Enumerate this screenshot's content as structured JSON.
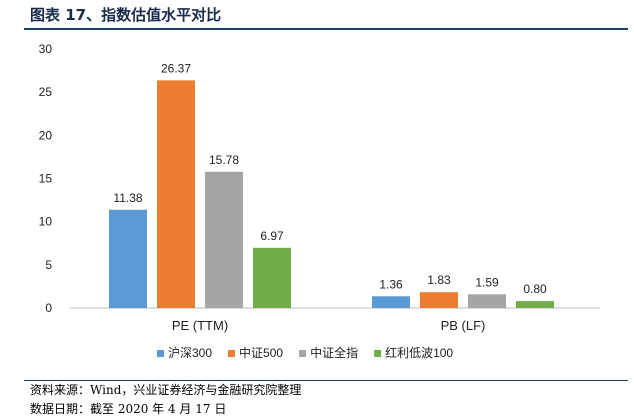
{
  "header": {
    "title": "图表 17、指数估值水平对比"
  },
  "chart_data": {
    "type": "bar",
    "title": "图表 17、指数估值水平对比",
    "categories": [
      "PE (TTM)",
      "PB (LF)"
    ],
    "series": [
      {
        "name": "沪深300",
        "color": "#5b9bd5",
        "values": [
          11.38,
          1.36
        ],
        "labels": [
          "11.38",
          "1.36"
        ]
      },
      {
        "name": "中证500",
        "color": "#ed7d31",
        "values": [
          26.37,
          1.83
        ],
        "labels": [
          "26.37",
          "1.83"
        ]
      },
      {
        "name": "中证全指",
        "color": "#a5a5a5",
        "values": [
          15.78,
          1.59
        ],
        "labels": [
          "15.78",
          "1.59"
        ]
      },
      {
        "name": "红利低波100",
        "color": "#70ad47",
        "values": [
          6.97,
          0.8
        ],
        "labels": [
          "6.97",
          "0.80"
        ]
      }
    ],
    "ylim": [
      0,
      30
    ],
    "yticks": [
      "0",
      "5",
      "10",
      "15",
      "20",
      "25",
      "30"
    ],
    "xlabel": "",
    "ylabel": "",
    "grid": false,
    "legend": "bottom"
  },
  "footer": {
    "source": "资料来源：Wind，兴业证券经济与金融研究院整理",
    "date": "数据日期：截至 2020 年 4 月 17 日"
  }
}
